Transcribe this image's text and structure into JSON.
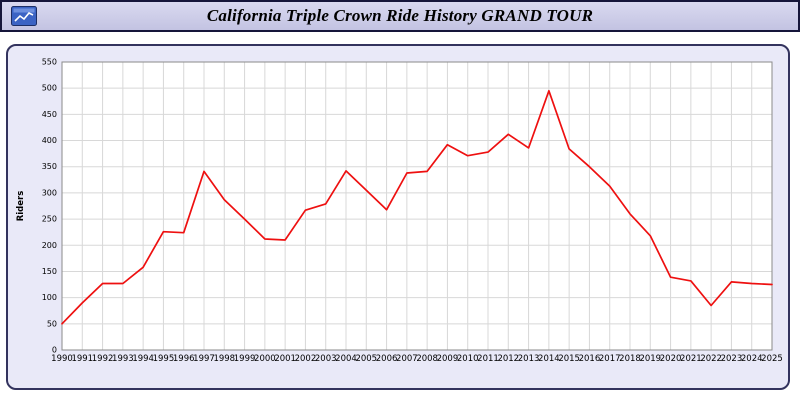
{
  "header": {
    "title": "California Triple Crown Ride History GRAND TOUR",
    "icon": "chart-window-icon"
  },
  "colors": {
    "line": "#ee1010",
    "panel_bg": "#e9e9f8",
    "header_bg": "#cdcdE8",
    "grid": "#d8d8d8",
    "frame": "#8a8a8a"
  },
  "chart_data": {
    "type": "line",
    "title": "California Triple Crown Ride History GRAND TOUR",
    "xlabel": "",
    "ylabel": "Riders",
    "ylim": [
      0,
      550
    ],
    "ytick_step": 50,
    "grid": true,
    "legend": "none",
    "line_color": "#ee1010",
    "categories": [
      "1990",
      "1991",
      "1992",
      "1993",
      "1994",
      "1995",
      "1996",
      "1997",
      "1998",
      "1999",
      "2000",
      "2001",
      "2002",
      "2003",
      "2004",
      "2005",
      "2006",
      "2007",
      "2008",
      "2009",
      "2010",
      "2011",
      "2012",
      "2013",
      "2014",
      "2015",
      "2016",
      "2017",
      "2018",
      "2019",
      "2020",
      "2021",
      "2022",
      "2023",
      "2024",
      "2025"
    ],
    "series": [
      {
        "name": "Riders",
        "values": [
          50,
          90,
          127,
          127,
          158,
          226,
          224,
          341,
          287,
          250,
          212,
          210,
          267,
          279,
          342,
          305,
          268,
          338,
          341,
          392,
          371,
          378,
          412,
          386,
          495,
          384,
          350,
          313,
          260,
          218,
          139,
          132,
          85,
          130,
          127,
          125
        ]
      }
    ]
  }
}
